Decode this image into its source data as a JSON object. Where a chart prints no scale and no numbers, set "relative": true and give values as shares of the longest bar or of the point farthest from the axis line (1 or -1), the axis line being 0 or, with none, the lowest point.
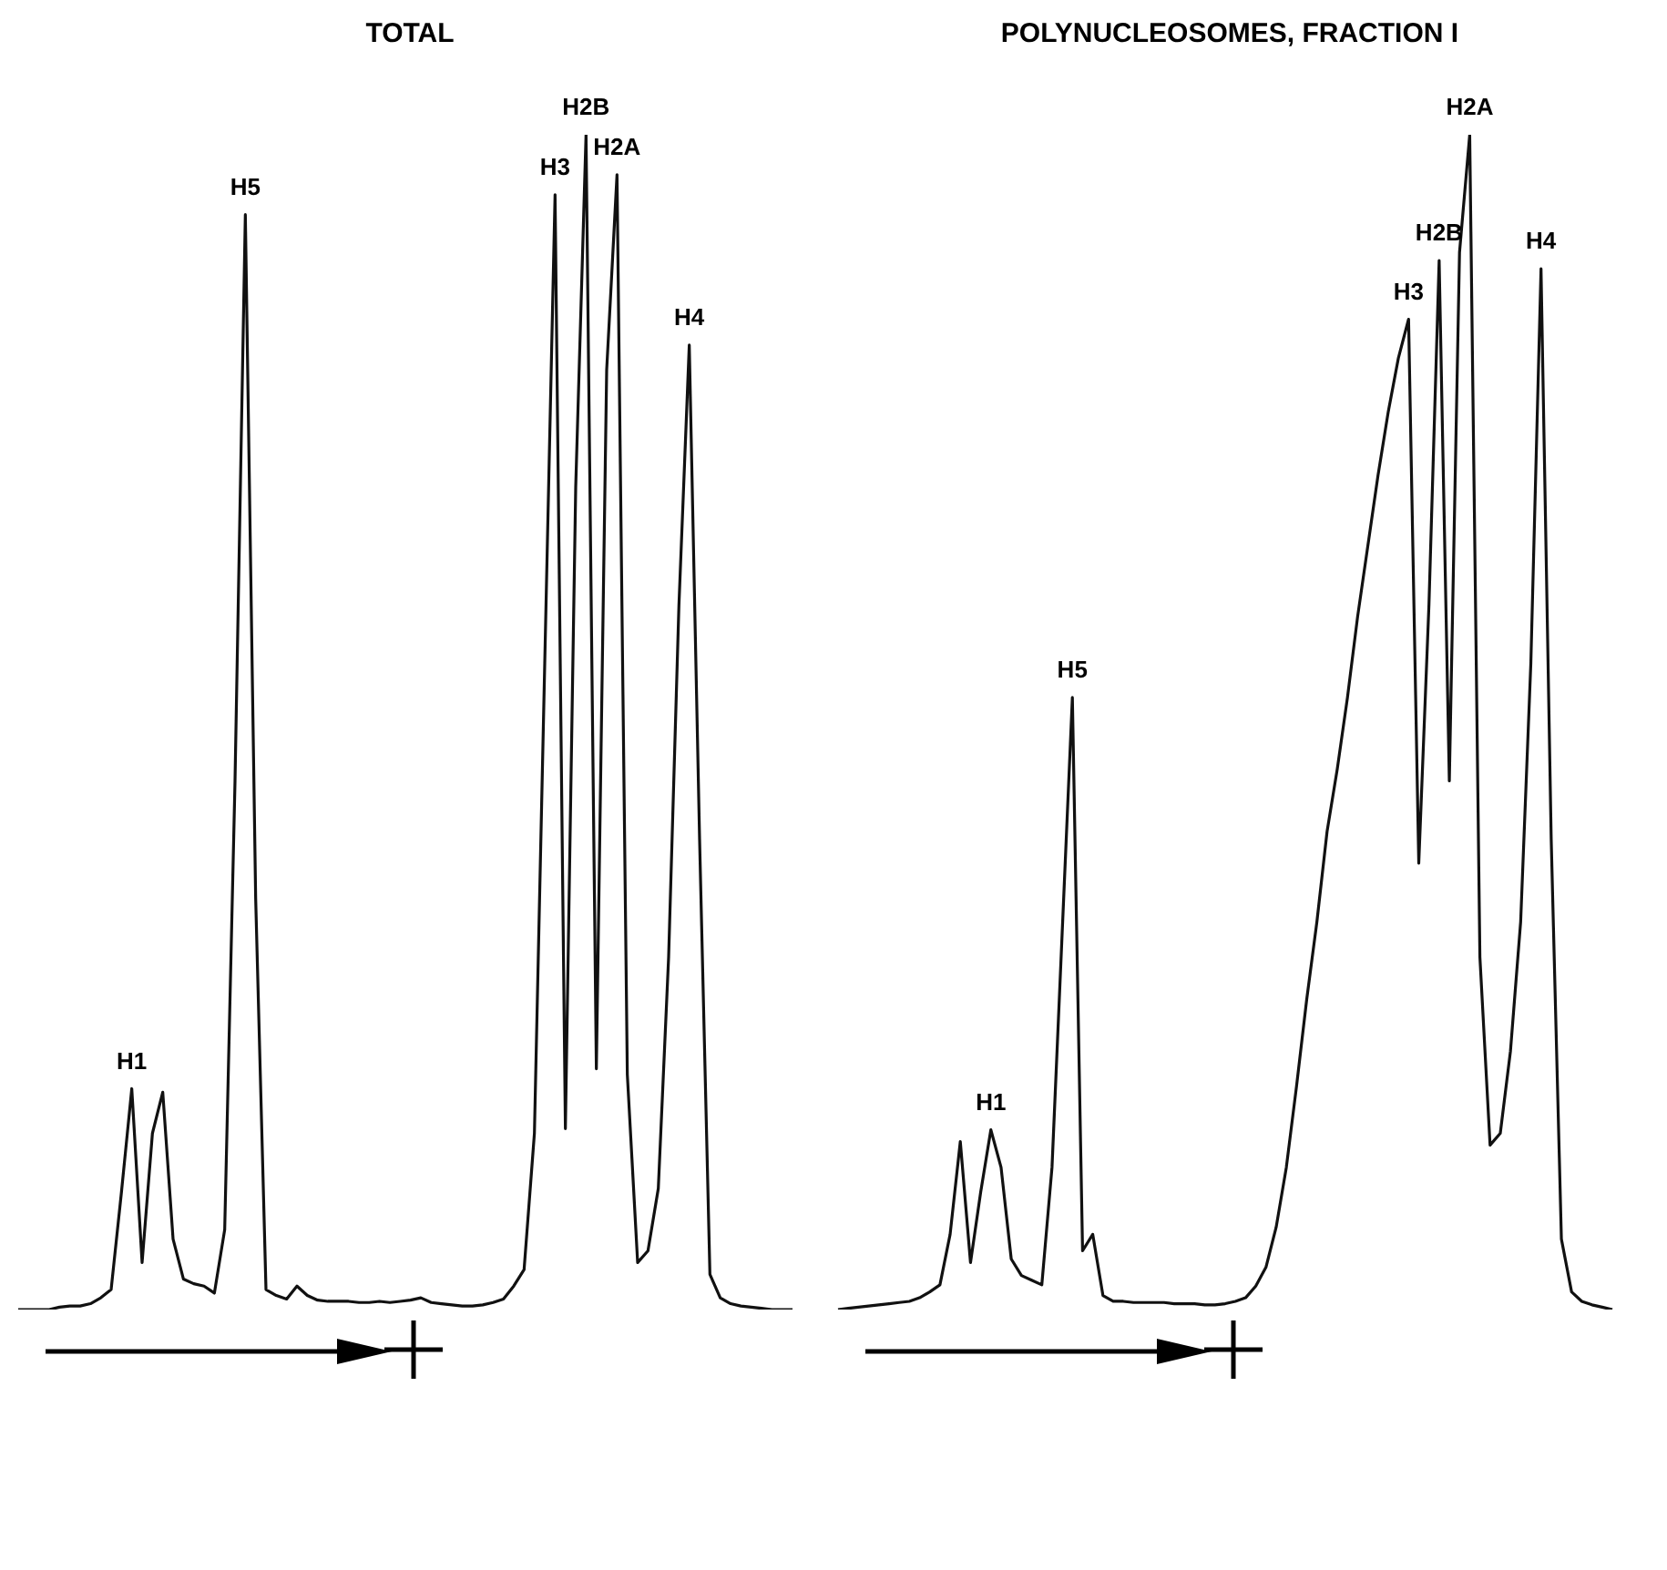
{
  "chart_data": [
    {
      "type": "line",
      "title": "TOTAL",
      "relative": true,
      "tick_labels": false,
      "grid": false,
      "legend": false,
      "marker": "none",
      "line_style": "solid",
      "categories": [
        null,
        null,
        null,
        null,
        null,
        null,
        null,
        null,
        null,
        null,
        null,
        null,
        null,
        null,
        null,
        null,
        null,
        null,
        null,
        null,
        null,
        null,
        null,
        null,
        null,
        null,
        null,
        null,
        null,
        null,
        null,
        null,
        null,
        null,
        null,
        null,
        null,
        null,
        null,
        null,
        null,
        null,
        null,
        null,
        null,
        null,
        null,
        null,
        null,
        null,
        null,
        null,
        null,
        null,
        null,
        null,
        null,
        null,
        null,
        null,
        null,
        null,
        null,
        null,
        null,
        null,
        null,
        null,
        null,
        null,
        null,
        null,
        null,
        null,
        null,
        null
      ],
      "series": [
        {
          "color": "#111111",
          "values": [
            0,
            0,
            0,
            0,
            0.002,
            0.003,
            0.003,
            0.005,
            0.01,
            0.017,
            0.1,
            0.188,
            0.04,
            0.15,
            0.185,
            0.06,
            0.026,
            0.022,
            0.02,
            0.014,
            0.068,
            0.45,
            0.932,
            0.35,
            0.017,
            0.012,
            0.009,
            0.02,
            0.012,
            0.008,
            0.007,
            0.007,
            0.007,
            0.006,
            0.006,
            0.007,
            0.006,
            0.007,
            0.008,
            0.01,
            0.006,
            0.005,
            0.004,
            0.003,
            0.003,
            0.004,
            0.006,
            0.009,
            0.02,
            0.034,
            0.15,
            0.55,
            0.949,
            0.154,
            0.7,
            1,
            0.205,
            0.8,
            0.966,
            0.2,
            0.04,
            0.05,
            0.103,
            0.3,
            0.6,
            0.821,
            0.4,
            0.03,
            0.01,
            0.005,
            0.003,
            0.002,
            0.001,
            0,
            0,
            0
          ]
        }
      ],
      "annotations": [
        "H1",
        "H5",
        "H3",
        "H2B",
        "H2A",
        "H4"
      ]
    },
    {
      "type": "line",
      "title": "POLYNUCLEOSOMES, FRACTION I",
      "relative": true,
      "tick_labels": false,
      "grid": false,
      "legend": false,
      "marker": "none",
      "line_style": "solid",
      "categories": [
        null,
        null,
        null,
        null,
        null,
        null,
        null,
        null,
        null,
        null,
        null,
        null,
        null,
        null,
        null,
        null,
        null,
        null,
        null,
        null,
        null,
        null,
        null,
        null,
        null,
        null,
        null,
        null,
        null,
        null,
        null,
        null,
        null,
        null,
        null,
        null,
        null,
        null,
        null,
        null,
        null,
        null,
        null,
        null,
        null,
        null,
        null,
        null,
        null,
        null,
        null,
        null,
        null,
        null,
        null,
        null,
        null,
        null,
        null,
        null,
        null,
        null,
        null,
        null,
        null,
        null,
        null,
        null,
        null,
        null,
        null,
        null,
        null,
        null,
        null,
        null,
        null
      ],
      "series": [
        {
          "color": "#111111",
          "values": [
            0,
            0.001,
            0.002,
            0.003,
            0.004,
            0.005,
            0.006,
            0.007,
            0.01,
            0.015,
            0.021,
            0.064,
            0.143,
            0.04,
            0.1,
            0.153,
            0.121,
            0.043,
            0.029,
            0.025,
            0.021,
            0.121,
            0.321,
            0.521,
            0.05,
            0.064,
            0.012,
            0.007,
            0.007,
            0.006,
            0.006,
            0.006,
            0.006,
            0.005,
            0.005,
            0.005,
            0.004,
            0.004,
            0.005,
            0.007,
            0.01,
            0.02,
            0.036,
            0.07,
            0.121,
            0.19,
            0.264,
            0.33,
            0.407,
            0.46,
            0.521,
            0.59,
            0.65,
            0.71,
            0.764,
            0.81,
            0.843,
            0.38,
            0.6,
            0.893,
            0.45,
            0.9,
            1,
            0.3,
            0.14,
            0.15,
            0.22,
            0.33,
            0.55,
            0.886,
            0.4,
            0.06,
            0.015,
            0.007,
            0.004,
            0.002,
            0
          ]
        }
      ],
      "annotations": [
        "H1",
        "H5",
        "H3",
        "H2B",
        "H2A",
        "H4"
      ]
    }
  ]
}
